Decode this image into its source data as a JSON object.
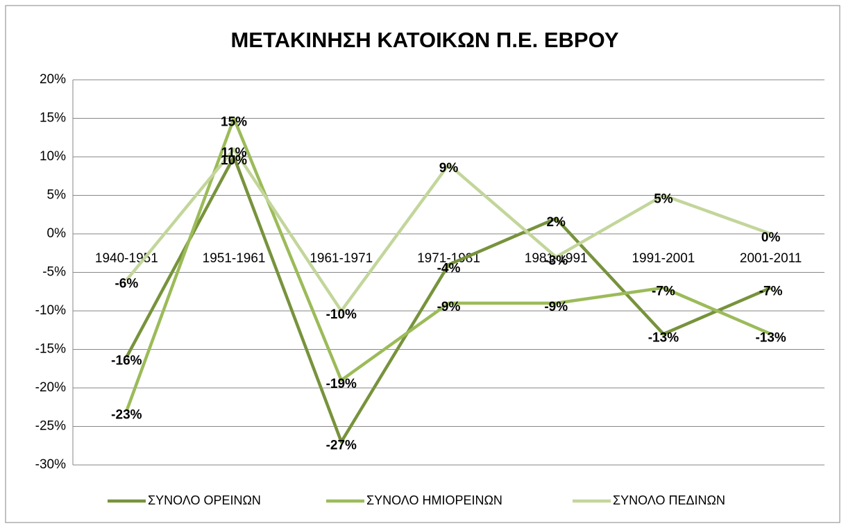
{
  "chart_data": {
    "type": "line",
    "title": "ΜΕΤΑΚΙΝΗΣΗ ΚΑΤΟΙΚΩΝ Π.Ε. ΕΒΡΟΥ",
    "categories": [
      "1940-1951",
      "1951-1961",
      "1961-1971",
      "1971-1981",
      "1981-1991",
      "1991-2001",
      "2001-2011"
    ],
    "series": [
      {
        "name": "ΣΥΝΟΛΟ ΟΡΕΙΝΩΝ",
        "color": "#77933c",
        "values": [
          -16,
          10,
          -27,
          -4,
          2,
          -13,
          -7
        ],
        "value_labels": [
          "-16%",
          "10%",
          "-27%",
          "-4%",
          "2%",
          "-13%",
          "-7%"
        ]
      },
      {
        "name": "ΣΥΝΟΛΟ ΗΜΙΟΡΕΙΝΩΝ",
        "color": "#9bbb59",
        "values": [
          -23,
          15,
          -19,
          -9,
          -9,
          -7,
          -13
        ],
        "value_labels": [
          "-23%",
          "15%",
          "-19%",
          "-9%",
          "-9%",
          "-7%",
          "-13%"
        ]
      },
      {
        "name": "ΣΥΝΟΛΟ ΠΕΔΙΝΩΝ",
        "color": "#c3d69b",
        "values": [
          -6,
          11,
          -10,
          9,
          -3,
          5,
          0
        ],
        "value_labels": [
          "-6%",
          "11%",
          "-10%",
          "9%",
          "-3%",
          "5%",
          "0%"
        ]
      }
    ],
    "ylim": [
      -30,
      20
    ],
    "yticks": [
      {
        "value": -30,
        "label": "-30%"
      },
      {
        "value": -25,
        "label": "-25%"
      },
      {
        "value": -20,
        "label": "-20%"
      },
      {
        "value": -15,
        "label": "-15%"
      },
      {
        "value": -10,
        "label": "-10%"
      },
      {
        "value": -5,
        "label": "-5%"
      },
      {
        "value": 0,
        "label": "0%"
      },
      {
        "value": 5,
        "label": "5%"
      },
      {
        "value": 10,
        "label": "10%"
      },
      {
        "value": 15,
        "label": "15%"
      },
      {
        "value": 20,
        "label": "20%"
      }
    ],
    "grid": true,
    "legend": "bottom"
  }
}
